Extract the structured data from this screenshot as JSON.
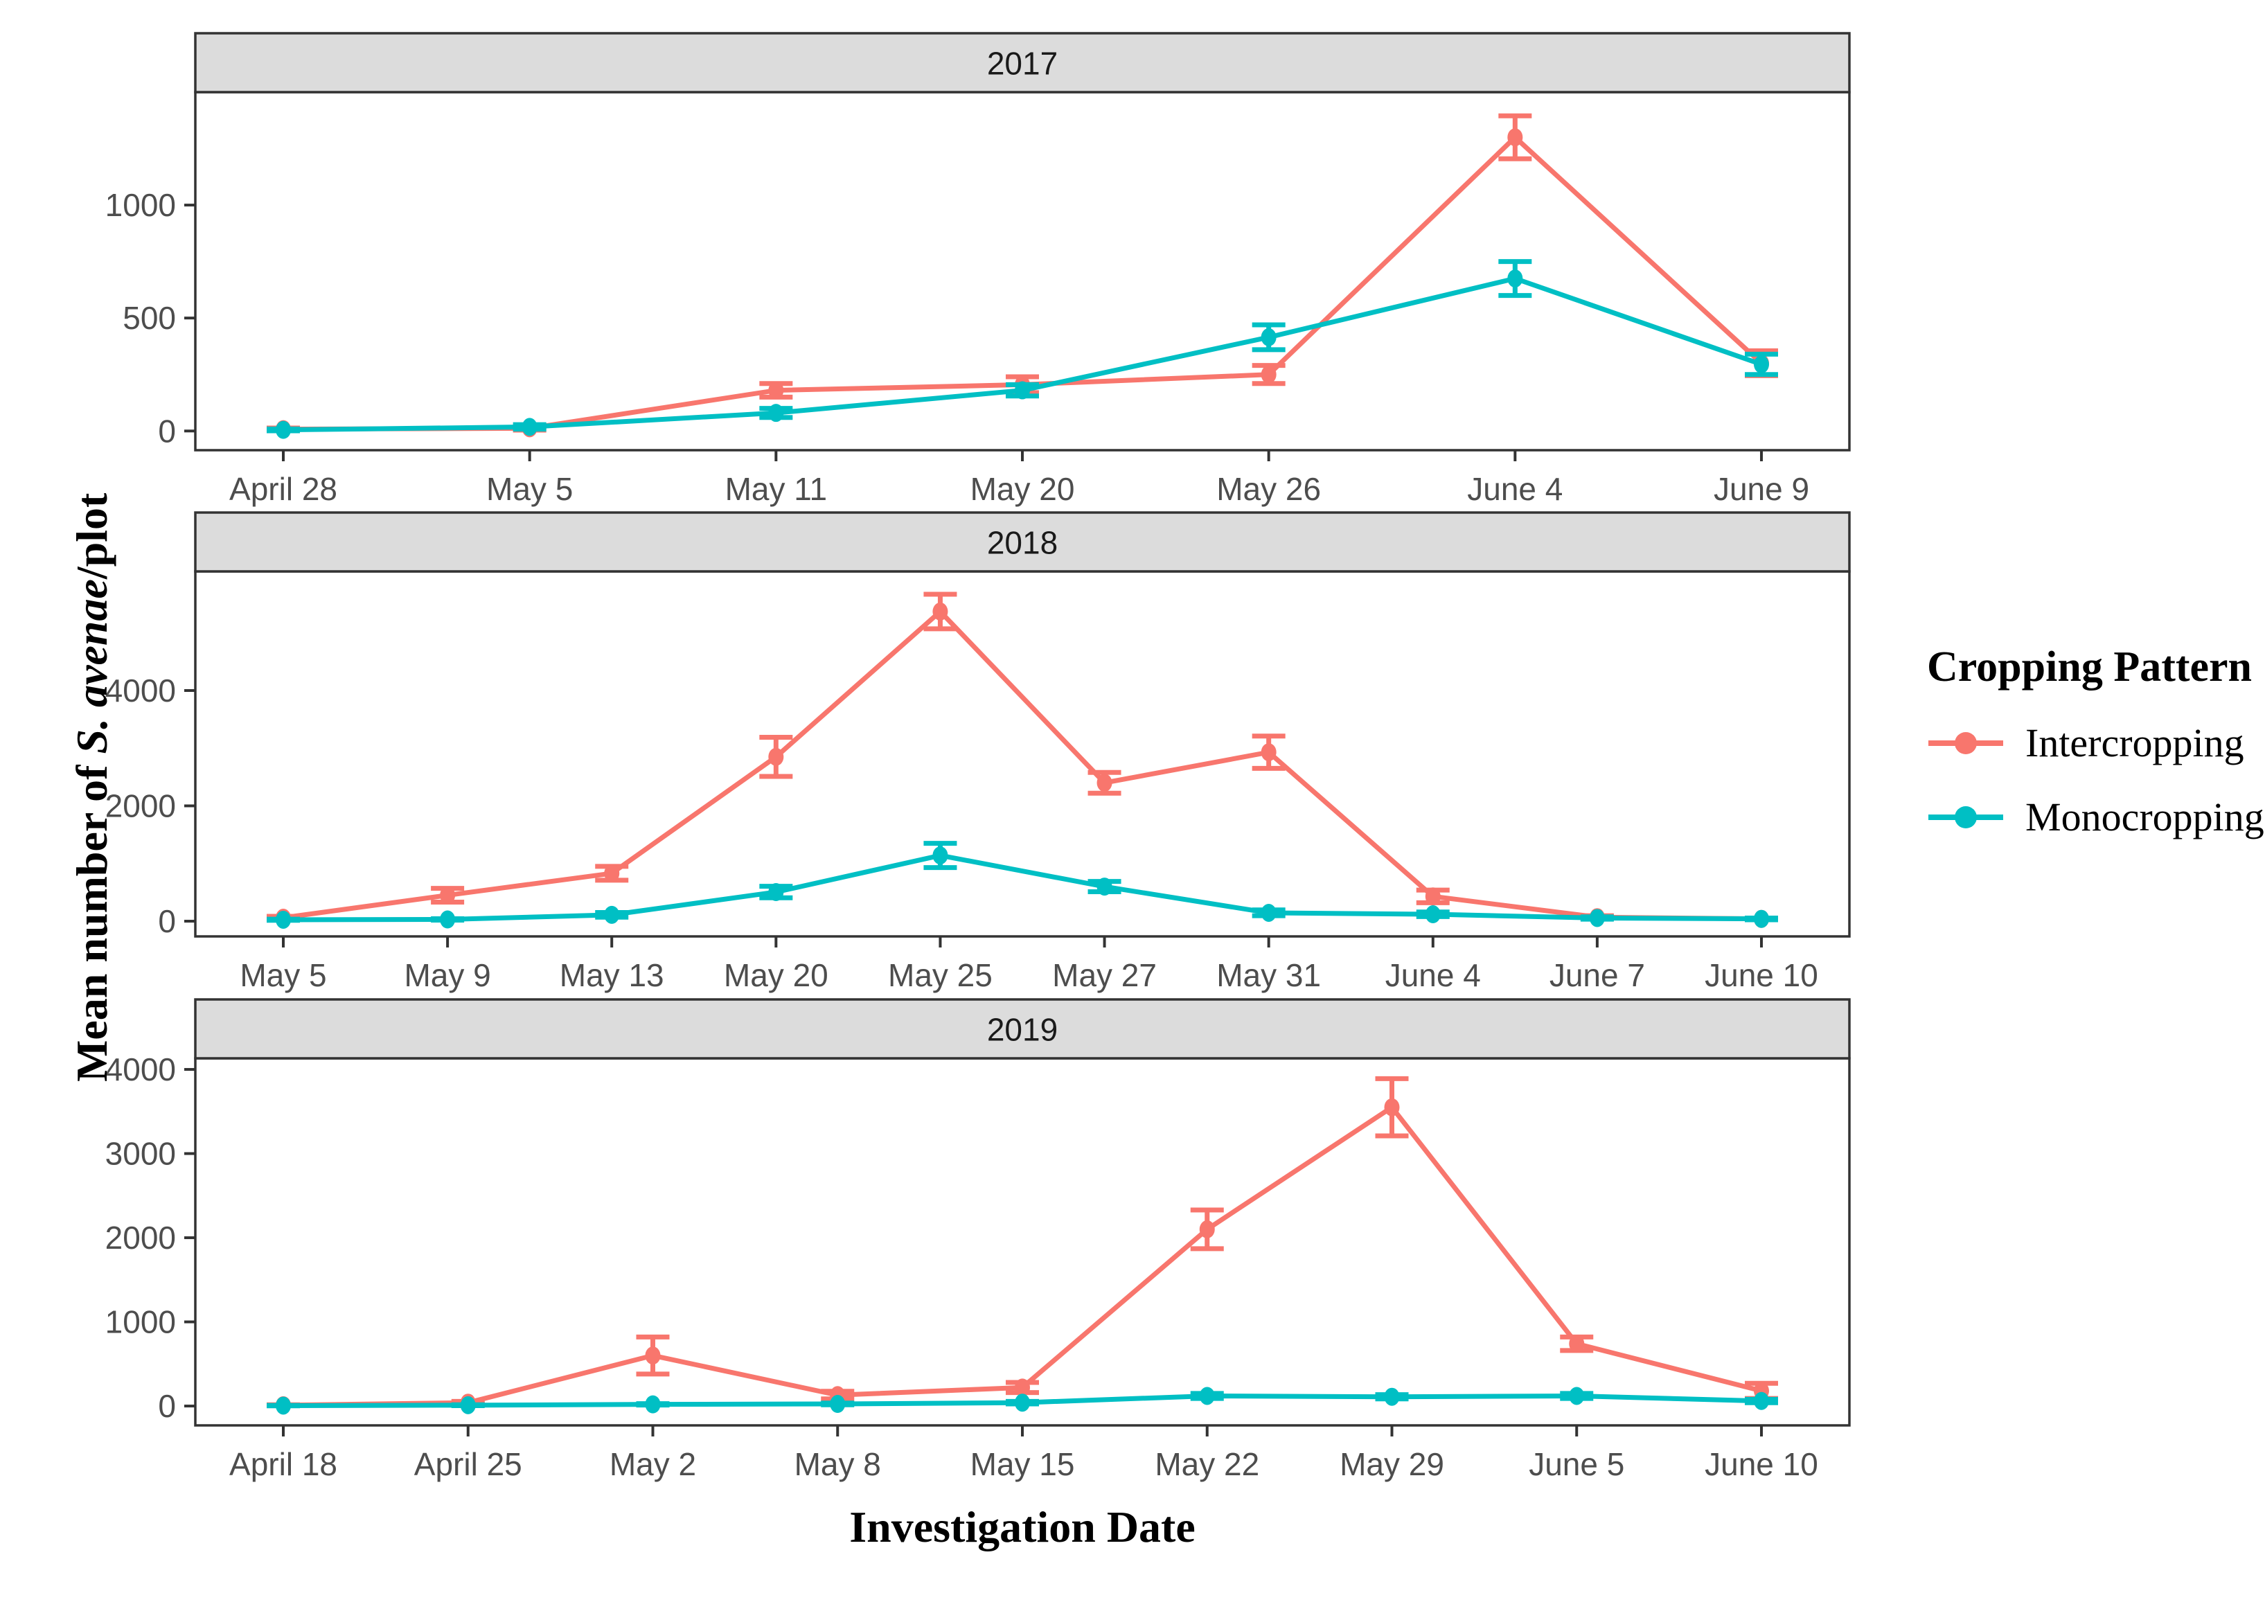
{
  "figure": {
    "y_axis_title": {
      "prefix": "Mean number of ",
      "italic": "S. avenae",
      "suffix": "/plot"
    },
    "x_axis_title": "Investigation Date",
    "colors": {
      "intercropping": "#F8766D",
      "monocropping": "#00BFC4",
      "strip_fill": "#DCDCDC",
      "panel_border": "#333333",
      "tick_text": "#4D4D4D",
      "strip_text": "#1A1A1A"
    }
  },
  "legend": {
    "title": "Cropping Pattern",
    "position": "right",
    "entries": [
      {
        "label": "Intercropping",
        "color": "#F8766D"
      },
      {
        "label": "Monocropping",
        "color": "#00BFC4"
      }
    ]
  },
  "chart_data": [
    {
      "type": "line",
      "facet": "2017",
      "categories": [
        "April 28",
        "May 5",
        "May 11",
        "May 20",
        "May 26",
        "June 4",
        "June 9"
      ],
      "yticks": [
        0,
        500,
        1000
      ],
      "ylim": [
        -85,
        1500
      ],
      "grid": false,
      "series": [
        {
          "name": "Intercropping",
          "values": [
            8,
            12,
            180,
            205,
            250,
            1300,
            300
          ],
          "errors": [
            5,
            8,
            30,
            35,
            40,
            95,
            55
          ]
        },
        {
          "name": "Monocropping",
          "values": [
            5,
            18,
            80,
            180,
            415,
            675,
            295
          ],
          "errors": [
            4,
            10,
            20,
            25,
            55,
            75,
            45
          ]
        }
      ]
    },
    {
      "type": "line",
      "facet": "2018",
      "categories": [
        "May 5",
        "May 9",
        "May 13",
        "May 20",
        "May 25",
        "May 27",
        "May 31",
        "June 4",
        "June 7",
        "June 10"
      ],
      "yticks": [
        0,
        2000,
        4000
      ],
      "ylim": [
        -264,
        6066
      ],
      "grid": false,
      "series": [
        {
          "name": "Intercropping",
          "values": [
            60,
            450,
            830,
            2850,
            5370,
            2400,
            2930,
            430,
            70,
            40
          ],
          "errors": [
            25,
            120,
            120,
            340,
            300,
            180,
            280,
            110,
            25,
            15
          ]
        },
        {
          "name": "Monocropping",
          "values": [
            25,
            30,
            110,
            505,
            1140,
            600,
            145,
            120,
            55,
            40
          ],
          "errors": [
            10,
            12,
            40,
            100,
            210,
            90,
            50,
            40,
            20,
            15
          ]
        }
      ]
    },
    {
      "type": "line",
      "facet": "2019",
      "categories": [
        "April 18",
        "April 25",
        "May 2",
        "May 8",
        "May 15",
        "May 22",
        "May 29",
        "June 5",
        "June 10"
      ],
      "yticks": [
        0,
        1000,
        2000,
        3000,
        4000
      ],
      "ylim": [
        -230,
        4132
      ],
      "grid": false,
      "series": [
        {
          "name": "Intercropping",
          "values": [
            10,
            40,
            600,
            130,
            220,
            2100,
            3550,
            740,
            180
          ],
          "errors": [
            5,
            15,
            220,
            45,
            60,
            230,
            340,
            80,
            90
          ]
        },
        {
          "name": "Monocropping",
          "values": [
            5,
            10,
            20,
            25,
            40,
            120,
            110,
            120,
            60
          ],
          "errors": [
            3,
            5,
            8,
            10,
            15,
            30,
            25,
            30,
            20
          ]
        }
      ]
    }
  ]
}
